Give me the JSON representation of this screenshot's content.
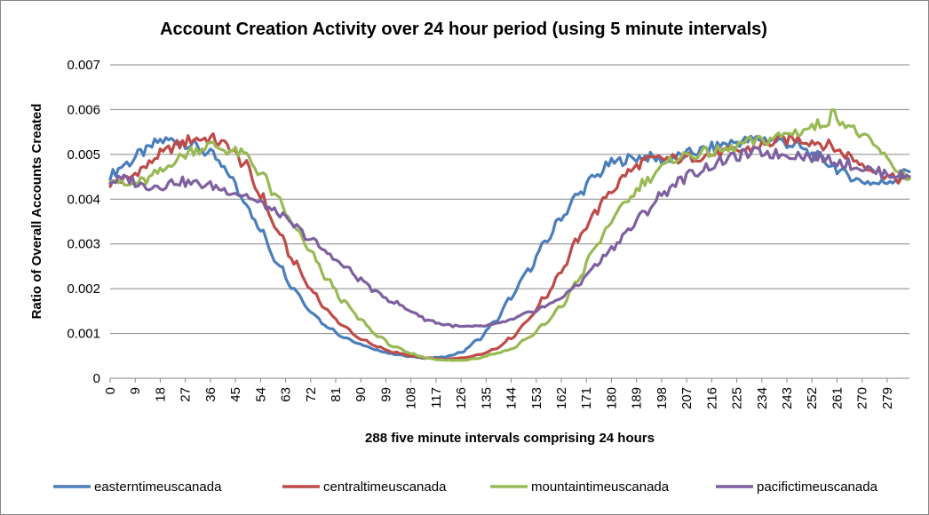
{
  "chart_data": {
    "type": "line",
    "title": "Account Creation Activity over 24 hour period (using 5 minute intervals)",
    "xlabel": "288 five minute intervals comprising 24 hours",
    "ylabel": "Ratio of Overall Accounts Created",
    "xlim": [
      0,
      287
    ],
    "ylim": [
      0,
      0.007
    ],
    "grid": true,
    "legend_position": "bottom",
    "y_ticks": [
      "0",
      "0.001",
      "0.002",
      "0.003",
      "0.004",
      "0.005",
      "0.006",
      "0.007"
    ],
    "x_ticks": [
      "0",
      "9",
      "18",
      "27",
      "36",
      "45",
      "54",
      "63",
      "72",
      "81",
      "90",
      "99",
      "108",
      "117",
      "126",
      "135",
      "144",
      "153",
      "162",
      "171",
      "180",
      "189",
      "198",
      "207",
      "216",
      "225",
      "234",
      "243",
      "252",
      "261",
      "270",
      "279"
    ],
    "series": [
      {
        "name": "easterntimeuscanada",
        "color": "#4a7ebb",
        "points": [
          [
            0,
            0.00455
          ],
          [
            6,
            0.0048
          ],
          [
            12,
            0.00505
          ],
          [
            18,
            0.0053
          ],
          [
            24,
            0.00532
          ],
          [
            30,
            0.0052
          ],
          [
            36,
            0.005
          ],
          [
            42,
            0.0046
          ],
          [
            48,
            0.004
          ],
          [
            54,
            0.0033
          ],
          [
            60,
            0.0026
          ],
          [
            66,
            0.002
          ],
          [
            72,
            0.0015
          ],
          [
            78,
            0.00115
          ],
          [
            84,
            0.00092
          ],
          [
            90,
            0.00075
          ],
          [
            96,
            0.00062
          ],
          [
            102,
            0.00054
          ],
          [
            108,
            0.00048
          ],
          [
            114,
            0.00045
          ],
          [
            120,
            0.00047
          ],
          [
            126,
            0.00058
          ],
          [
            132,
            0.00085
          ],
          [
            138,
            0.00125
          ],
          [
            144,
            0.0018
          ],
          [
            150,
            0.0024
          ],
          [
            156,
            0.003
          ],
          [
            162,
            0.0036
          ],
          [
            168,
            0.0041
          ],
          [
            174,
            0.0045
          ],
          [
            180,
            0.0048
          ],
          [
            186,
            0.0049
          ],
          [
            192,
            0.00495
          ],
          [
            198,
            0.00488
          ],
          [
            204,
            0.00495
          ],
          [
            210,
            0.00505
          ],
          [
            216,
            0.00515
          ],
          [
            222,
            0.00525
          ],
          [
            228,
            0.0053
          ],
          [
            234,
            0.00535
          ],
          [
            240,
            0.0053
          ],
          [
            246,
            0.0052
          ],
          [
            252,
            0.005
          ],
          [
            258,
            0.0048
          ],
          [
            264,
            0.00455
          ],
          [
            270,
            0.0044
          ],
          [
            276,
            0.00435
          ],
          [
            282,
            0.00445
          ],
          [
            287,
            0.00465
          ]
        ]
      },
      {
        "name": "centraltimeuscanada",
        "color": "#be4b48",
        "points": [
          [
            0,
            0.00435
          ],
          [
            6,
            0.00445
          ],
          [
            12,
            0.0047
          ],
          [
            18,
            0.005
          ],
          [
            24,
            0.0052
          ],
          [
            30,
            0.00535
          ],
          [
            36,
            0.00535
          ],
          [
            42,
            0.0052
          ],
          [
            48,
            0.0048
          ],
          [
            54,
            0.0041
          ],
          [
            60,
            0.0033
          ],
          [
            66,
            0.0026
          ],
          [
            72,
            0.002
          ],
          [
            78,
            0.0015
          ],
          [
            84,
            0.00115
          ],
          [
            90,
            0.00088
          ],
          [
            96,
            0.0007
          ],
          [
            102,
            0.00058
          ],
          [
            108,
            0.0005
          ],
          [
            114,
            0.00045
          ],
          [
            120,
            0.00042
          ],
          [
            126,
            0.00045
          ],
          [
            132,
            0.00052
          ],
          [
            138,
            0.00065
          ],
          [
            144,
            0.0009
          ],
          [
            150,
            0.0013
          ],
          [
            156,
            0.0018
          ],
          [
            162,
            0.0024
          ],
          [
            168,
            0.0031
          ],
          [
            174,
            0.0037
          ],
          [
            180,
            0.0042
          ],
          [
            186,
            0.0046
          ],
          [
            192,
            0.00485
          ],
          [
            198,
            0.0049
          ],
          [
            204,
            0.0049
          ],
          [
            210,
            0.00495
          ],
          [
            216,
            0.005
          ],
          [
            222,
            0.00505
          ],
          [
            228,
            0.0051
          ],
          [
            234,
            0.0052
          ],
          [
            240,
            0.0053
          ],
          [
            246,
            0.00535
          ],
          [
            252,
            0.0053
          ],
          [
            258,
            0.0052
          ],
          [
            264,
            0.005
          ],
          [
            270,
            0.0048
          ],
          [
            276,
            0.0046
          ],
          [
            282,
            0.00445
          ],
          [
            287,
            0.00445
          ]
        ]
      },
      {
        "name": "mountaintimeuscanada",
        "color": "#98b954",
        "points": [
          [
            0,
            0.0045
          ],
          [
            6,
            0.0043
          ],
          [
            12,
            0.0044
          ],
          [
            18,
            0.0046
          ],
          [
            24,
            0.0049
          ],
          [
            30,
            0.0051
          ],
          [
            36,
            0.0052
          ],
          [
            42,
            0.0051
          ],
          [
            48,
            0.005
          ],
          [
            54,
            0.0046
          ],
          [
            60,
            0.004
          ],
          [
            66,
            0.0034
          ],
          [
            72,
            0.0028
          ],
          [
            78,
            0.0022
          ],
          [
            84,
            0.0017
          ],
          [
            90,
            0.0013
          ],
          [
            96,
            0.00095
          ],
          [
            102,
            0.0007
          ],
          [
            108,
            0.00055
          ],
          [
            114,
            0.00045
          ],
          [
            120,
            0.0004
          ],
          [
            126,
            0.0004
          ],
          [
            132,
            0.00045
          ],
          [
            138,
            0.00055
          ],
          [
            144,
            0.00065
          ],
          [
            150,
            0.0009
          ],
          [
            156,
            0.0012
          ],
          [
            162,
            0.0016
          ],
          [
            168,
            0.0022
          ],
          [
            174,
            0.0029
          ],
          [
            180,
            0.0035
          ],
          [
            186,
            0.004
          ],
          [
            192,
            0.0044
          ],
          [
            198,
            0.0047
          ],
          [
            204,
            0.00495
          ],
          [
            210,
            0.005
          ],
          [
            216,
            0.00505
          ],
          [
            222,
            0.0051
          ],
          [
            228,
            0.00525
          ],
          [
            234,
            0.0053
          ],
          [
            240,
            0.0054
          ],
          [
            246,
            0.0055
          ],
          [
            252,
            0.0056
          ],
          [
            256,
            0.0057
          ],
          [
            260,
            0.0059
          ],
          [
            264,
            0.0057
          ],
          [
            268,
            0.0055
          ],
          [
            272,
            0.0053
          ],
          [
            276,
            0.0051
          ],
          [
            280,
            0.0048
          ],
          [
            284,
            0.0046
          ],
          [
            287,
            0.0045
          ]
        ]
      },
      {
        "name": "pacifictimeuscanada",
        "color": "#7d60a0",
        "points": [
          [
            0,
            0.0044
          ],
          [
            6,
            0.00445
          ],
          [
            12,
            0.0043
          ],
          [
            18,
            0.0043
          ],
          [
            24,
            0.0044
          ],
          [
            30,
            0.00435
          ],
          [
            36,
            0.0043
          ],
          [
            42,
            0.0042
          ],
          [
            48,
            0.0041
          ],
          [
            54,
            0.0039
          ],
          [
            60,
            0.0037
          ],
          [
            66,
            0.0034
          ],
          [
            72,
            0.0031
          ],
          [
            78,
            0.0028
          ],
          [
            84,
            0.0025
          ],
          [
            90,
            0.0022
          ],
          [
            96,
            0.0019
          ],
          [
            102,
            0.0017
          ],
          [
            108,
            0.0015
          ],
          [
            114,
            0.0013
          ],
          [
            120,
            0.0012
          ],
          [
            126,
            0.00115
          ],
          [
            132,
            0.00115
          ],
          [
            138,
            0.0012
          ],
          [
            144,
            0.0013
          ],
          [
            150,
            0.00145
          ],
          [
            156,
            0.0016
          ],
          [
            162,
            0.0018
          ],
          [
            168,
            0.0021
          ],
          [
            174,
            0.0025
          ],
          [
            180,
            0.0029
          ],
          [
            186,
            0.0033
          ],
          [
            192,
            0.0037
          ],
          [
            198,
            0.0041
          ],
          [
            204,
            0.0044
          ],
          [
            210,
            0.0046
          ],
          [
            216,
            0.00475
          ],
          [
            222,
            0.0049
          ],
          [
            228,
            0.005
          ],
          [
            234,
            0.00505
          ],
          [
            240,
            0.005
          ],
          [
            246,
            0.005
          ],
          [
            252,
            0.00495
          ],
          [
            258,
            0.0049
          ],
          [
            264,
            0.0048
          ],
          [
            270,
            0.0047
          ],
          [
            276,
            0.0046
          ],
          [
            282,
            0.00455
          ],
          [
            287,
            0.0045
          ]
        ]
      }
    ]
  }
}
